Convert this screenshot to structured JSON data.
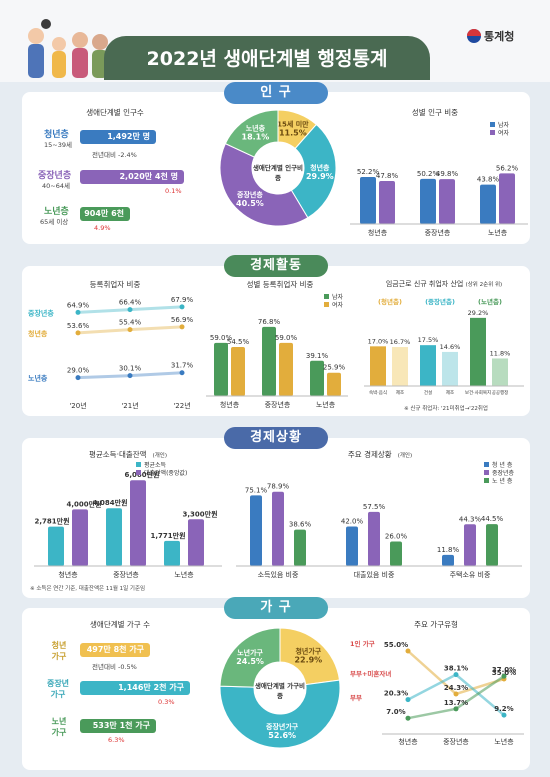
{
  "header": {
    "title": "2022년 생애단계별 행정통계",
    "agency": "통계청"
  },
  "sections": {
    "population": "인 구",
    "economic_activity": "경제활동",
    "economic_status": "경제상황",
    "household": "가 구"
  },
  "population": {
    "count_title": "생애단계별 인구수",
    "groups": [
      {
        "name": "청년층",
        "range": "15~39세",
        "value": "1,492만 명",
        "change_text": "전년대비 -2.4%"
      },
      {
        "name": "중장년층",
        "range": "40~64세",
        "value": "2,020만 4천 명",
        "change_text": "0.1%"
      },
      {
        "name": "노년층",
        "range": "65세 이상",
        "value": "904만 6천 명",
        "change_text": "4.9%"
      }
    ],
    "donut_center": "생애단계별 인구비중",
    "share_title": "성별 인구 비중",
    "legend": [
      "남자",
      "여자"
    ]
  },
  "econ_activity": {
    "biz_title": "등록취업자 비중",
    "gender_title": "성별 등록취업자 비중",
    "industry_title": "임금근로 신규 취업자 산업",
    "industry_note": "(상위 2순위 위)",
    "footnote": "※ 신규 취업자: '21미취업→'22취업",
    "groups_tags": [
      "(청년층)",
      "(중장년층)",
      "(노년층)"
    ],
    "industry_labels": [
      "숙박·음식",
      "제조",
      "건설",
      "제조",
      "보건·사회복지",
      "공공행정"
    ],
    "legend": [
      "남자",
      "여자"
    ]
  },
  "econ_status": {
    "income_title": "평균소득·대출잔액",
    "income_title_unit": "(개인)",
    "income_legend": [
      "평균소득",
      "대출잔액(중앙값)"
    ],
    "indicator_title": "주요 경제상황",
    "indicator_title_unit": "(개인)",
    "indicator_legend": [
      "청 년 층",
      "중장년층",
      "노 년 층"
    ],
    "footnote": "※ 소득은 연간 기준, 대출잔액은 11월 1일 기준임"
  },
  "household": {
    "count_title": "생애단계별 가구 수",
    "groups": [
      {
        "name": "청년\n가구",
        "value": "497만 8천 가구",
        "change_text": "전년대비 -0.5%"
      },
      {
        "name": "중장년\n가구",
        "value": "1,146만 2천 가구",
        "change_text": "0.3%"
      },
      {
        "name": "노년\n가구",
        "value": "533만 1천 가구",
        "change_text": "6.3%"
      }
    ],
    "donut_center": "생애단계별 가구비중",
    "type_title": "주요 가구유형",
    "type_labels": [
      "1인 가구",
      "부부+미혼자녀",
      "부부"
    ]
  },
  "chart_data": [
    {
      "type": "pie",
      "id": "population_share",
      "labels": [
        "15세 미만",
        "청년층",
        "중장년층",
        "노년층"
      ],
      "values": [
        11.5,
        29.9,
        40.5,
        18.1
      ],
      "colors": [
        "#f4cf62",
        "#3cb5c6",
        "#8a64b8",
        "#6ab77c"
      ]
    },
    {
      "type": "bar",
      "id": "population_gender",
      "categories": [
        "청년층",
        "중장년층",
        "노년층"
      ],
      "series": [
        {
          "name": "남자",
          "values": [
            52.2,
            50.2,
            43.8
          ]
        },
        {
          "name": "여자",
          "values": [
            47.8,
            49.8,
            56.2
          ]
        }
      ]
    },
    {
      "type": "line",
      "id": "registered_employment",
      "x": [
        "'20년",
        "'21년",
        "'22년"
      ],
      "series": [
        {
          "name": "중장년층",
          "values": [
            64.9,
            66.4,
            67.9
          ]
        },
        {
          "name": "청년층",
          "values": [
            53.6,
            55.4,
            56.9
          ]
        },
        {
          "name": "노년층",
          "values": [
            29.0,
            30.1,
            31.7
          ]
        }
      ]
    },
    {
      "type": "bar",
      "id": "employment_gender",
      "categories": [
        "청년층",
        "중장년층",
        "노년층"
      ],
      "series": [
        {
          "name": "남자",
          "values": [
            59.0,
            76.8,
            39.1
          ]
        },
        {
          "name": "여자",
          "values": [
            54.5,
            59.0,
            25.9
          ]
        }
      ]
    },
    {
      "type": "bar",
      "id": "new_worker_industry",
      "categories": [
        "숙박·음식",
        "제조",
        "건설",
        "제조",
        "보건·사회복지",
        "공공행정"
      ],
      "values": [
        17.0,
        16.7,
        17.5,
        14.6,
        29.2,
        11.8
      ]
    },
    {
      "type": "bar",
      "id": "income_loan",
      "categories": [
        "청년층",
        "중장년층",
        "노년층"
      ],
      "series": [
        {
          "name": "평균소득",
          "values": [
            2781,
            4084,
            1771
          ],
          "labels": [
            "2,781만원",
            "4,084만원",
            "1,771만원"
          ]
        },
        {
          "name": "대출잔액(중앙값)",
          "values": [
            4000,
            6060,
            3300
          ],
          "labels": [
            "4,000만원",
            "6,060만원",
            "3,300만원"
          ]
        }
      ]
    },
    {
      "type": "bar",
      "id": "key_indicators",
      "categories": [
        "소득있음 비중",
        "대출있음 비중",
        "주택소유 비중"
      ],
      "series": [
        {
          "name": "청 년 층",
          "values": [
            75.1,
            42.0,
            11.8
          ]
        },
        {
          "name": "중장년층",
          "values": [
            78.9,
            57.5,
            44.3
          ]
        },
        {
          "name": "노 년 층",
          "values": [
            38.6,
            26.0,
            44.5
          ]
        }
      ]
    },
    {
      "type": "pie",
      "id": "household_share",
      "labels": [
        "청년가구",
        "중장년가구",
        "노년가구"
      ],
      "values": [
        22.9,
        52.6,
        24.5
      ],
      "colors": [
        "#f4cf62",
        "#3cb5c6",
        "#6ab77c"
      ]
    },
    {
      "type": "line",
      "id": "household_types",
      "x": [
        "청년층",
        "중장년층",
        "노년층"
      ],
      "series": [
        {
          "name": "1인 가구",
          "values": [
            55.0,
            24.3,
            35.0
          ]
        },
        {
          "name": "부부+미혼자녀",
          "values": [
            20.3,
            38.1,
            9.2
          ]
        },
        {
          "name": "부부",
          "values": [
            7.0,
            13.7,
            37.0
          ]
        }
      ]
    }
  ]
}
